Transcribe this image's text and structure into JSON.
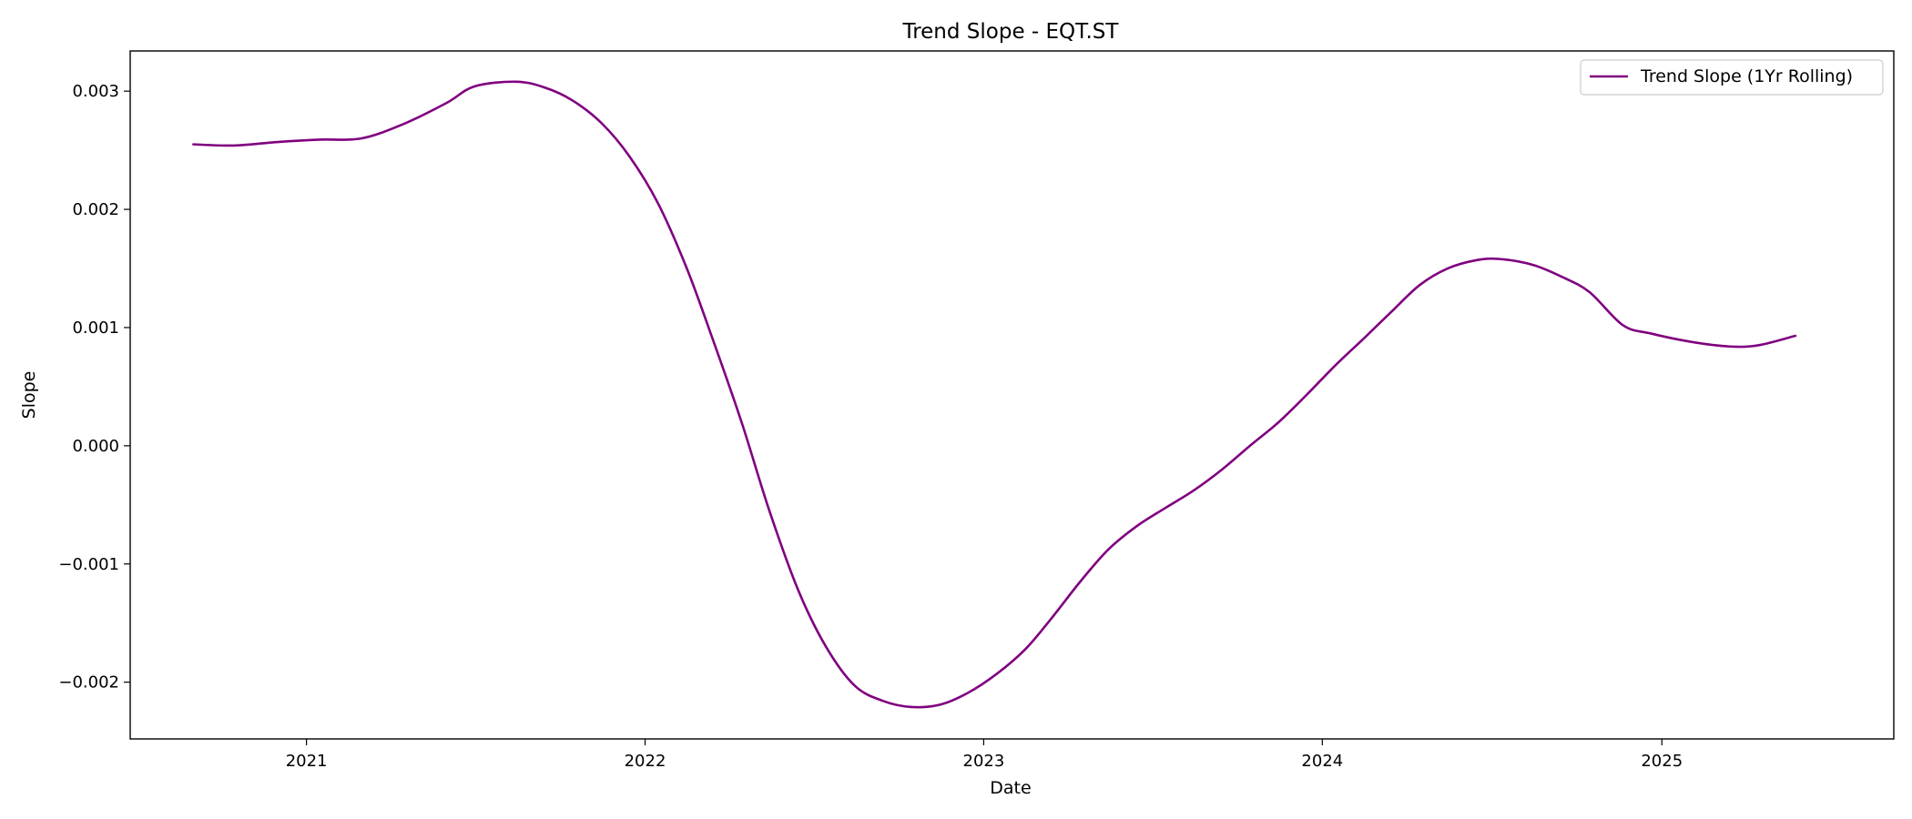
{
  "chart_data": {
    "type": "line",
    "title": "Trend Slope - EQT.ST",
    "xlabel": "Date",
    "ylabel": "Slope",
    "x_axis": {
      "type": "date",
      "range": [
        "2020-06-25",
        "2025-09-08"
      ],
      "ticks": [
        {
          "value": "2021-01-01",
          "label": "2021"
        },
        {
          "value": "2022-01-01",
          "label": "2022"
        },
        {
          "value": "2023-01-01",
          "label": "2023"
        },
        {
          "value": "2024-01-01",
          "label": "2024"
        },
        {
          "value": "2025-01-01",
          "label": "2025"
        }
      ]
    },
    "y_axis": {
      "range": [
        -0.00248,
        0.00334
      ],
      "ticks": [
        {
          "value": -0.002,
          "label": "−0.002"
        },
        {
          "value": -0.001,
          "label": "−0.001"
        },
        {
          "value": 0.0,
          "label": "0.000"
        },
        {
          "value": 0.001,
          "label": "0.001"
        },
        {
          "value": 0.002,
          "label": "0.002"
        },
        {
          "value": 0.003,
          "label": "0.003"
        }
      ]
    },
    "grid": false,
    "legend": {
      "position": "top-right"
    },
    "series": [
      {
        "name": "Trend Slope (1Yr Rolling)",
        "color": "#800080",
        "points": [
          {
            "x": "2020-09-01",
            "y": 0.00255
          },
          {
            "x": "2020-10-15",
            "y": 0.00254
          },
          {
            "x": "2020-12-01",
            "y": 0.00257
          },
          {
            "x": "2021-01-15",
            "y": 0.00259
          },
          {
            "x": "2021-03-01",
            "y": 0.0026
          },
          {
            "x": "2021-04-15",
            "y": 0.00272
          },
          {
            "x": "2021-06-01",
            "y": 0.0029
          },
          {
            "x": "2021-07-01",
            "y": 0.00304
          },
          {
            "x": "2021-08-15",
            "y": 0.00308
          },
          {
            "x": "2021-09-15",
            "y": 0.00303
          },
          {
            "x": "2021-10-15",
            "y": 0.00292
          },
          {
            "x": "2021-11-15",
            "y": 0.00273
          },
          {
            "x": "2021-12-15",
            "y": 0.00245
          },
          {
            "x": "2022-01-15",
            "y": 0.00205
          },
          {
            "x": "2022-02-15",
            "y": 0.0015
          },
          {
            "x": "2022-03-15",
            "y": 0.0009
          },
          {
            "x": "2022-04-15",
            "y": 0.0002
          },
          {
            "x": "2022-05-15",
            "y": -0.00055
          },
          {
            "x": "2022-06-15",
            "y": -0.00122
          },
          {
            "x": "2022-07-15",
            "y": -0.0017
          },
          {
            "x": "2022-08-15",
            "y": -0.00203
          },
          {
            "x": "2022-09-15",
            "y": -0.00216
          },
          {
            "x": "2022-10-15",
            "y": -0.00221
          },
          {
            "x": "2022-11-15",
            "y": -0.00219
          },
          {
            "x": "2022-12-15",
            "y": -0.00209
          },
          {
            "x": "2023-01-15",
            "y": -0.00193
          },
          {
            "x": "2023-02-15",
            "y": -0.00172
          },
          {
            "x": "2023-03-15",
            "y": -0.00146
          },
          {
            "x": "2023-04-15",
            "y": -0.00115
          },
          {
            "x": "2023-05-15",
            "y": -0.00088
          },
          {
            "x": "2023-06-15",
            "y": -0.00068
          },
          {
            "x": "2023-07-15",
            "y": -0.00053
          },
          {
            "x": "2023-08-15",
            "y": -0.00038
          },
          {
            "x": "2023-09-15",
            "y": -0.0002
          },
          {
            "x": "2023-10-15",
            "y": 0.0
          },
          {
            "x": "2023-11-15",
            "y": 0.0002
          },
          {
            "x": "2023-12-15",
            "y": 0.00043
          },
          {
            "x": "2024-01-15",
            "y": 0.00068
          },
          {
            "x": "2024-02-15",
            "y": 0.00091
          },
          {
            "x": "2024-03-15",
            "y": 0.00113
          },
          {
            "x": "2024-04-15",
            "y": 0.00136
          },
          {
            "x": "2024-05-15",
            "y": 0.0015
          },
          {
            "x": "2024-06-15",
            "y": 0.00157
          },
          {
            "x": "2024-07-10",
            "y": 0.00158
          },
          {
            "x": "2024-08-15",
            "y": 0.00153
          },
          {
            "x": "2024-09-15",
            "y": 0.00143
          },
          {
            "x": "2024-10-15",
            "y": 0.0013
          },
          {
            "x": "2024-11-20",
            "y": 0.00102
          },
          {
            "x": "2024-12-20",
            "y": 0.00095
          },
          {
            "x": "2025-02-01",
            "y": 0.00088
          },
          {
            "x": "2025-03-15",
            "y": 0.00084
          },
          {
            "x": "2025-04-15",
            "y": 0.00085
          },
          {
            "x": "2025-05-25",
            "y": 0.00093
          }
        ]
      }
    ]
  }
}
